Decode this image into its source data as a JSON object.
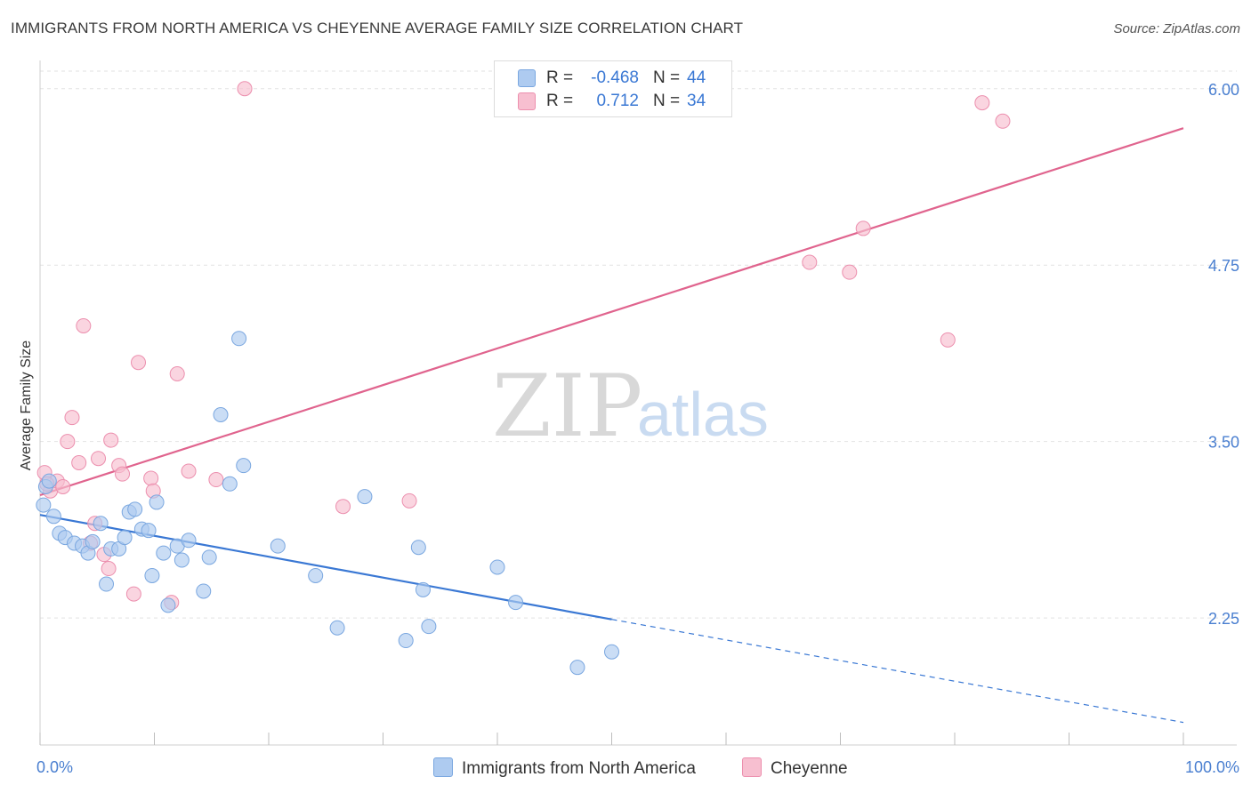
{
  "title": "IMMIGRANTS FROM NORTH AMERICA VS CHEYENNE AVERAGE FAMILY SIZE CORRELATION CHART",
  "source": "Source: ZipAtlas.com",
  "watermark": {
    "part1": "ZIP",
    "part2": "atlas"
  },
  "legend": {
    "rows": [
      {
        "r_label": "R =",
        "r_value": "-0.468",
        "n_label": "N =",
        "n_value": "44",
        "color": "#aecbf0"
      },
      {
        "r_label": "R =",
        "r_value": "0.712",
        "n_label": "N =",
        "n_value": "34",
        "color": "#f7bfd0"
      }
    ]
  },
  "bottom_legend": {
    "blue_label": "Immigrants from North America",
    "pink_label": "Cheyenne"
  },
  "colors": {
    "blue_fill": "#aecbf0",
    "blue_stroke": "#7aa7e0",
    "blue_line": "#3a78d4",
    "pink_fill": "#f7bfd0",
    "pink_stroke": "#ec8fae",
    "pink_line": "#e0648e",
    "grid": "#e2e2e2",
    "tick_text": "#4a7fd0"
  },
  "chart_data": {
    "type": "scatter",
    "title": "IMMIGRANTS FROM NORTH AMERICA VS CHEYENNE AVERAGE FAMILY SIZE CORRELATION CHART",
    "ylabel": "Average Family Size",
    "xlabel": "",
    "x_tick_labels": [
      "0.0%",
      "100.0%"
    ],
    "y_ticks": [
      2.25,
      3.5,
      4.75,
      6.0
    ],
    "y_tick_labels": [
      "2.25",
      "3.50",
      "4.75",
      "6.00"
    ],
    "xlim": [
      0,
      100
    ],
    "ylim": [
      1.35,
      6.2
    ],
    "grid": true,
    "legend_position": "top-center",
    "series": [
      {
        "name": "Immigrants from North America",
        "r": -0.468,
        "n": 44,
        "points": [
          [
            0.5,
            3.18
          ],
          [
            0.8,
            3.22
          ],
          [
            1.2,
            2.97
          ],
          [
            1.7,
            2.85
          ],
          [
            2.2,
            2.82
          ],
          [
            3.0,
            2.78
          ],
          [
            3.7,
            2.76
          ],
          [
            4.2,
            2.71
          ],
          [
            4.6,
            2.79
          ],
          [
            5.3,
            2.92
          ],
          [
            5.8,
            2.49
          ],
          [
            6.2,
            2.74
          ],
          [
            6.9,
            2.74
          ],
          [
            7.4,
            2.82
          ],
          [
            7.8,
            3.0
          ],
          [
            8.3,
            3.02
          ],
          [
            8.9,
            2.88
          ],
          [
            9.5,
            2.87
          ],
          [
            9.8,
            2.55
          ],
          [
            10.2,
            3.07
          ],
          [
            10.8,
            2.71
          ],
          [
            11.2,
            2.34
          ],
          [
            12.0,
            2.76
          ],
          [
            12.4,
            2.66
          ],
          [
            13.0,
            2.8
          ],
          [
            14.3,
            2.44
          ],
          [
            14.8,
            2.68
          ],
          [
            15.8,
            3.69
          ],
          [
            16.6,
            3.2
          ],
          [
            17.4,
            4.23
          ],
          [
            17.8,
            3.33
          ],
          [
            20.8,
            2.76
          ],
          [
            24.1,
            2.55
          ],
          [
            26.0,
            2.18
          ],
          [
            28.4,
            3.11
          ],
          [
            32.0,
            2.09
          ],
          [
            33.1,
            2.75
          ],
          [
            33.5,
            2.45
          ],
          [
            34.0,
            2.19
          ],
          [
            40.0,
            2.61
          ],
          [
            41.6,
            2.36
          ],
          [
            47.0,
            1.9
          ],
          [
            50.0,
            2.01
          ],
          [
            0.3,
            3.05
          ]
        ]
      },
      {
        "name": "Cheyenne",
        "r": 0.712,
        "n": 34,
        "points": [
          [
            0.4,
            3.28
          ],
          [
            0.9,
            3.15
          ],
          [
            1.5,
            3.22
          ],
          [
            2.0,
            3.18
          ],
          [
            2.4,
            3.5
          ],
          [
            2.8,
            3.67
          ],
          [
            3.4,
            3.35
          ],
          [
            3.8,
            4.32
          ],
          [
            4.4,
            2.78
          ],
          [
            4.8,
            2.92
          ],
          [
            5.1,
            3.38
          ],
          [
            5.6,
            2.7
          ],
          [
            6.0,
            2.6
          ],
          [
            6.2,
            3.51
          ],
          [
            6.9,
            3.33
          ],
          [
            7.2,
            3.27
          ],
          [
            8.2,
            2.42
          ],
          [
            8.6,
            4.06
          ],
          [
            9.7,
            3.24
          ],
          [
            9.9,
            3.15
          ],
          [
            11.5,
            2.36
          ],
          [
            12.0,
            3.98
          ],
          [
            13.0,
            3.29
          ],
          [
            15.4,
            3.23
          ],
          [
            17.9,
            6.0
          ],
          [
            26.5,
            3.04
          ],
          [
            32.3,
            3.08
          ],
          [
            67.3,
            4.77
          ],
          [
            70.8,
            4.7
          ],
          [
            72.0,
            5.01
          ],
          [
            79.4,
            4.22
          ],
          [
            82.4,
            5.9
          ],
          [
            84.2,
            5.77
          ],
          [
            0.6,
            3.2
          ]
        ]
      }
    ],
    "trend_lines": [
      {
        "series": "Immigrants from North America",
        "x": [
          0,
          50
        ],
        "y": [
          2.98,
          2.24
        ],
        "dashed_to": [
          100,
          1.51
        ]
      },
      {
        "series": "Cheyenne",
        "x": [
          0,
          100
        ],
        "y": [
          3.12,
          5.72
        ]
      }
    ]
  }
}
